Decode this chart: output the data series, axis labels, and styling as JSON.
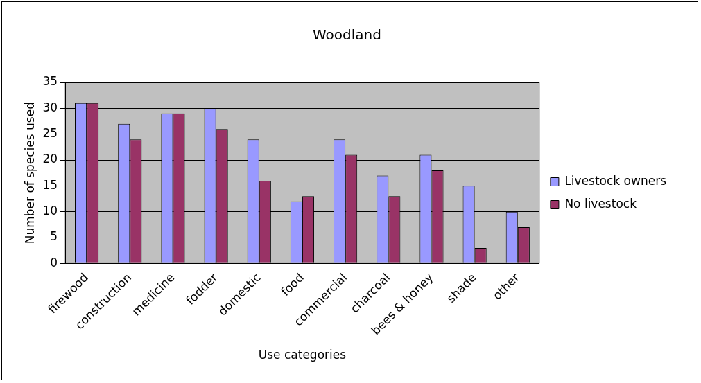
{
  "chart_data": {
    "type": "bar",
    "title": "Woodland",
    "xlabel": "Use categories",
    "ylabel": "Number of species used",
    "categories": [
      "firewood",
      "construction",
      "medicine",
      "fodder",
      "domestic",
      "food",
      "commercial",
      "charcoal",
      "bees & honey",
      "shade",
      "other"
    ],
    "series": [
      {
        "name": "Livestock owners",
        "color": "#9999ff",
        "values": [
          31,
          27,
          29,
          30,
          24,
          12,
          24,
          17,
          21,
          15,
          10
        ]
      },
      {
        "name": "No livestock",
        "color": "#993366",
        "values": [
          31,
          24,
          29,
          26,
          16,
          13,
          21,
          13,
          18,
          3,
          7
        ]
      }
    ],
    "ylim": [
      0,
      35
    ],
    "yticks": [
      0,
      5,
      10,
      15,
      20,
      25,
      30,
      35
    ],
    "grid": "y",
    "legend": "right"
  }
}
